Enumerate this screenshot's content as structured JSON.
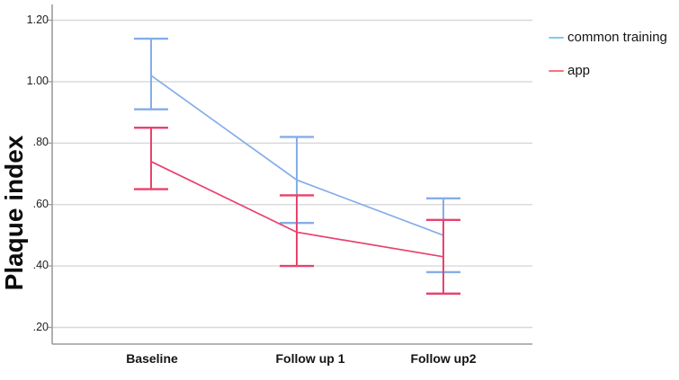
{
  "chart_data": {
    "type": "line",
    "title": "",
    "ylabel": "Plaque index",
    "xlabel": "",
    "categories": [
      "Baseline",
      "Follow up 1",
      "Follow up2"
    ],
    "ytick_labels": [
      "1.20",
      "1.00",
      ".80",
      ".60",
      ".40",
      ".20"
    ],
    "ylim": [
      0.14,
      1.25
    ],
    "grid": true,
    "legend_position": "top-right",
    "error_bars": true,
    "series": [
      {
        "name": "common training",
        "color": "#85ADE8",
        "legend_swatch_color": "#7ECDEE",
        "values": [
          1.02,
          0.68,
          0.5
        ],
        "ci_low": [
          0.91,
          0.54,
          0.38
        ],
        "ci_high": [
          1.14,
          0.82,
          0.62
        ]
      },
      {
        "name": "app",
        "color": "#E8426D",
        "legend_swatch_color": "#F4737D",
        "values": [
          0.74,
          0.51,
          0.43
        ],
        "ci_low": [
          0.65,
          0.4,
          0.31
        ],
        "ci_high": [
          0.85,
          0.63,
          0.55
        ]
      }
    ]
  }
}
